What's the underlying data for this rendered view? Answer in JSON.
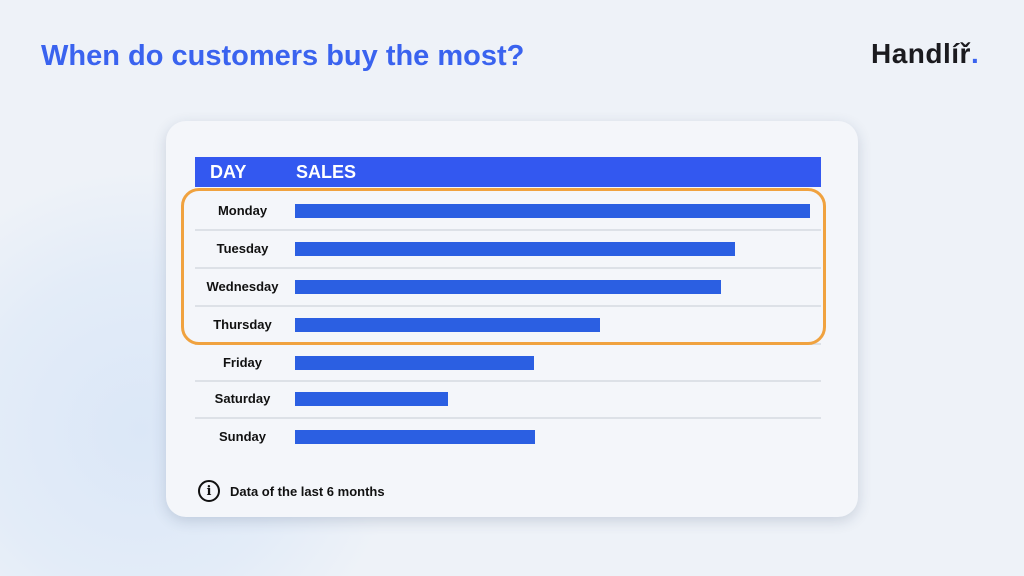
{
  "title": "When do customers buy the most?",
  "logo": {
    "text": "Handlíř",
    "dot": "."
  },
  "colors": {
    "accent": "#3a63ef",
    "bar": "#2b5fe2",
    "header": "#3358f0",
    "highlight": "#f0a23f"
  },
  "chart_data": {
    "type": "bar",
    "orientation": "horizontal",
    "columns": [
      "DAY",
      "SALES"
    ],
    "categories": [
      "Monday",
      "Tuesday",
      "Wednesday",
      "Thursday",
      "Friday",
      "Saturday",
      "Sunday"
    ],
    "values": [
      100,
      85.4,
      82.7,
      59.2,
      46.4,
      29.7,
      46.6
    ],
    "value_unit": "relative (% of max, no axis shown)",
    "highlighted": [
      "Monday",
      "Tuesday",
      "Wednesday",
      "Thursday"
    ],
    "grid": false
  },
  "footnote": {
    "icon": "info-icon",
    "text": "Data of the last 6 months"
  }
}
